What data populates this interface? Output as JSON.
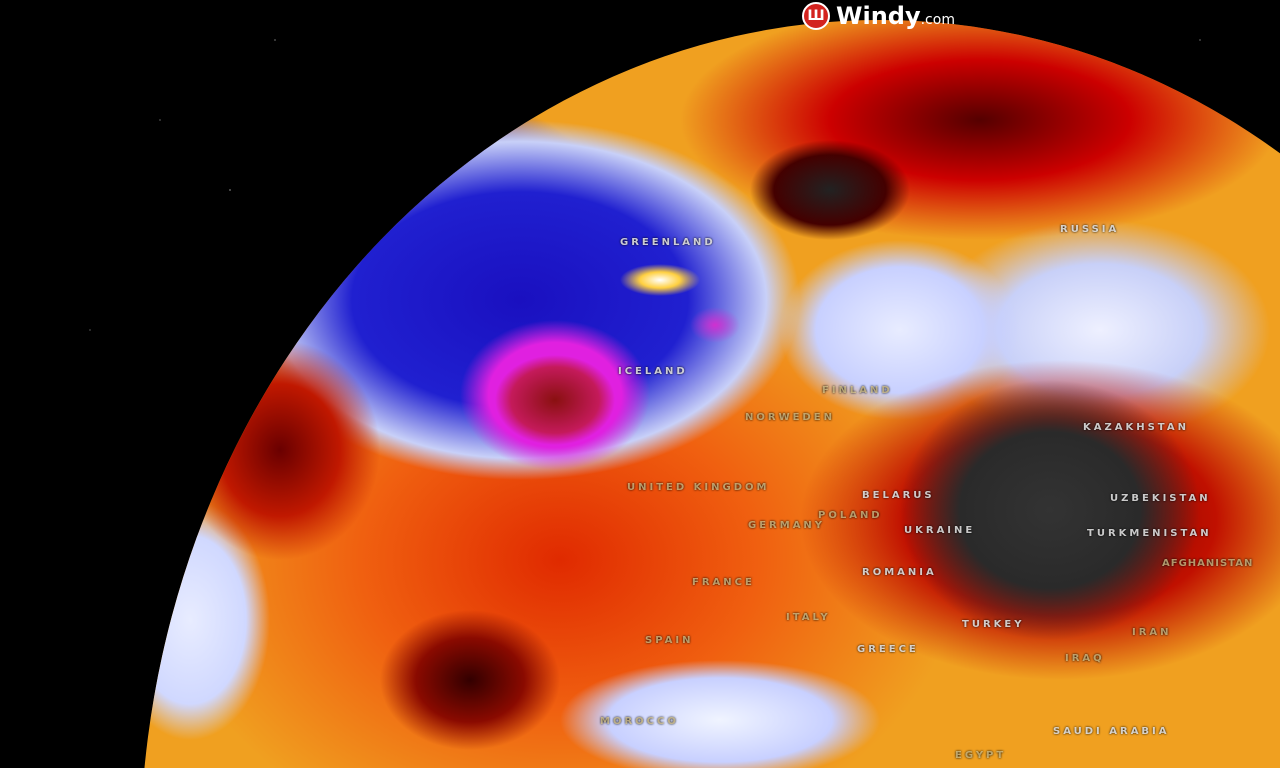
{
  "brand": {
    "name": "Windy",
    "suffix": ".com"
  },
  "labels": {
    "greenland": "GREENLAND",
    "russia": "RUSSIA",
    "iceland": "ICELAND",
    "finland": "FINLAND",
    "norway_sweden": "NORWEDEN",
    "united_kingdom": "UNITED KINGDOM",
    "belarus": "BELARUS",
    "poland": "POLAND",
    "germany": "GERMANY",
    "ukraine": "UKRAINE",
    "kazakhstan": "KAZAKHSTAN",
    "uzbekistan": "UZBEKISTAN",
    "turkmenistan": "TURKMENISTAN",
    "afghanistan": "AFGHANISTAN",
    "romania": "ROMANIA",
    "france": "FRANCE",
    "italy": "ITALY",
    "spain": "SPAIN",
    "greece": "GREECE",
    "turkey": "TURKEY",
    "iran": "IRAN",
    "iraq": "IRAQ",
    "saudi_arabia": "SAUDI ARABIA",
    "morocco": "MOROCCO",
    "egypt": "EGYPT"
  },
  "colors": {
    "brand": "#d3231f",
    "cold": "#2020d0",
    "hot": "#c01000",
    "extreme_cold": "#e020e0",
    "extreme_hot": "#2a2a2a"
  }
}
